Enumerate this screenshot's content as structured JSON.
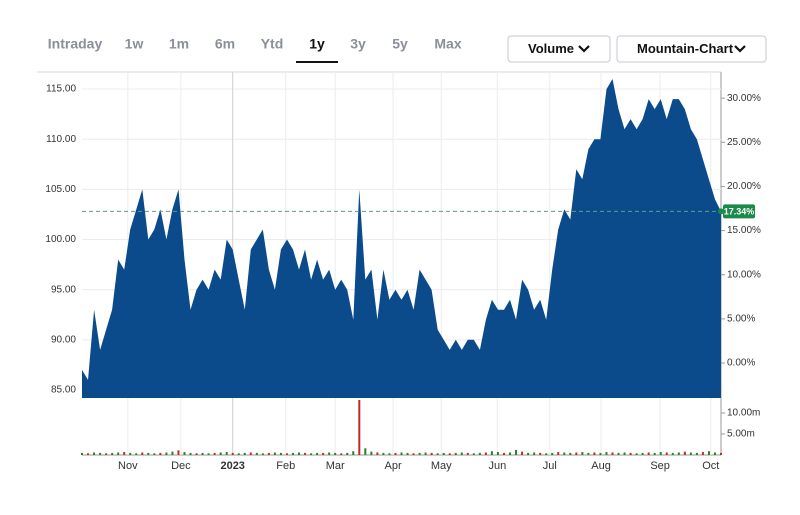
{
  "tabs": [
    "Intraday",
    "1w",
    "1m",
    "6m",
    "Ytd",
    "1y",
    "3y",
    "5y",
    "Max"
  ],
  "selected_tab": 5,
  "dropdowns": [
    "Volume",
    "Mountain-Chart"
  ],
  "chart_data": {
    "type": "area",
    "series": [
      {
        "name": "Price",
        "color": "#0b4a8b",
        "values": [
          87,
          86,
          93,
          89,
          91,
          93,
          98,
          97,
          101,
          103,
          105,
          100,
          101,
          103,
          100,
          103,
          105,
          98,
          93,
          95,
          96,
          95,
          97,
          96,
          100,
          99,
          96,
          93,
          99,
          100,
          101,
          97,
          95,
          99,
          100,
          99,
          97,
          99,
          96,
          98,
          96,
          97,
          95,
          96,
          95,
          92,
          105,
          96,
          97,
          92,
          97,
          94,
          95,
          94,
          95,
          93,
          97,
          96,
          95,
          91,
          90,
          89,
          90,
          89,
          90,
          90,
          89,
          92,
          94,
          93,
          93,
          94,
          92,
          96,
          95,
          93,
          94,
          92,
          97,
          101,
          103,
          102,
          107,
          106,
          109,
          110,
          110,
          115,
          116,
          113,
          111,
          112,
          111,
          112,
          114,
          113,
          114,
          112,
          114,
          114,
          113,
          111,
          110,
          108,
          106,
          104,
          102.8
        ]
      },
      {
        "name": "Volume",
        "color": "#2e7d32",
        "axis": "volume",
        "values": [
          0.5,
          0.4,
          0.6,
          0.5,
          0.4,
          0.5,
          0.6,
          0.7,
          0.5,
          0.4,
          0.6,
          0.5,
          0.4,
          0.5,
          0.6,
          0.8,
          1.1,
          0.7,
          0.5,
          0.4,
          0.5,
          0.4,
          0.5,
          0.6,
          0.7,
          0.5,
          0.4,
          0.5,
          0.6,
          0.5,
          0.4,
          0.5,
          0.6,
          0.5,
          0.4,
          0.5,
          0.6,
          0.5,
          0.4,
          0.5,
          0.5,
          0.6,
          0.5,
          0.4,
          0.5,
          0.9,
          13.1,
          1.6,
          0.8,
          0.6,
          0.5,
          0.4,
          0.5,
          0.6,
          0.5,
          0.4,
          0.5,
          0.6,
          0.5,
          0.4,
          0.5,
          0.4,
          0.5,
          0.6,
          0.5,
          0.4,
          0.5,
          0.6,
          0.9,
          0.7,
          0.5,
          0.6,
          1.2,
          0.8,
          0.5,
          0.6,
          0.5,
          0.4,
          0.5,
          0.7,
          0.6,
          0.5,
          0.6,
          0.7,
          0.5,
          0.6,
          0.5,
          0.7,
          0.6,
          0.5,
          0.6,
          0.5,
          0.4,
          0.5,
          0.6,
          0.5,
          0.7,
          0.6,
          0.5,
          0.6,
          0.8,
          0.6,
          0.5,
          0.7,
          0.9,
          0.6,
          0.5
        ]
      }
    ],
    "xlim": [
      0,
      106
    ],
    "xticks": [
      {
        "value": 7.6,
        "label": "Nov"
      },
      {
        "value": 16.4,
        "label": "Dec"
      },
      {
        "value": 25.0,
        "label": "2023"
      },
      {
        "value": 33.8,
        "label": "Feb"
      },
      {
        "value": 42.0,
        "label": "Mar"
      },
      {
        "value": 51.6,
        "label": "Apr"
      },
      {
        "value": 59.6,
        "label": "May"
      },
      {
        "value": 68.9,
        "label": "Jun"
      },
      {
        "value": 77.6,
        "label": "Jul"
      },
      {
        "value": 86.1,
        "label": "Aug"
      },
      {
        "value": 95.9,
        "label": "Sep"
      },
      {
        "value": 104.3,
        "label": "Oct"
      }
    ],
    "ylim": [
      84.2,
      116.7
    ],
    "yticks": [
      {
        "value": 85,
        "label": "85.00"
      },
      {
        "value": 90,
        "label": "90.00"
      },
      {
        "value": 95,
        "label": "95.00"
      },
      {
        "value": 100,
        "label": "100.00"
      },
      {
        "value": 105,
        "label": "105.00"
      },
      {
        "value": 110,
        "label": "110.00"
      },
      {
        "value": 115,
        "label": "115.00"
      }
    ],
    "y2lim": [
      -3.96,
      32.96
    ],
    "y2ticks": [
      {
        "value": 0,
        "label": "0.00%"
      },
      {
        "value": 5,
        "label": "5.00%"
      },
      {
        "value": 10,
        "label": "10.00%"
      },
      {
        "value": 15,
        "label": "15.00%"
      },
      {
        "value": 20,
        "label": "20.00%"
      },
      {
        "value": 25,
        "label": "25.00%"
      },
      {
        "value": 30,
        "label": "30.00%"
      }
    ],
    "volume_ylim": [
      0,
      13.1
    ],
    "volume_yticks": [
      {
        "value": 5,
        "label": "5.00m"
      },
      {
        "value": 10,
        "label": "10.00m"
      }
    ],
    "last_value": 102.8,
    "last_label": "17.34%",
    "grid": true
  }
}
